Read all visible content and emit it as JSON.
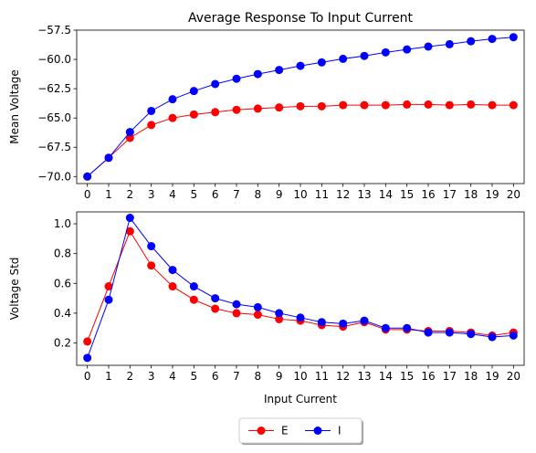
{
  "chart_data": [
    {
      "type": "line",
      "title": "Average Response To Input Current",
      "xlabel": "",
      "ylabel": "Mean Voltage",
      "x": [
        0,
        1,
        2,
        3,
        4,
        5,
        6,
        7,
        8,
        9,
        10,
        11,
        12,
        13,
        14,
        15,
        16,
        17,
        18,
        19,
        20
      ],
      "ylim": [
        -70.6,
        -57.5
      ],
      "yticks": [
        -70.0,
        -67.5,
        -65.0,
        -62.5,
        -60.0,
        -57.5
      ],
      "ytick_labels": [
        "−70.0",
        "−67.5",
        "−65.0",
        "−62.5",
        "−60.0",
        "−57.5"
      ],
      "grid": false,
      "series": [
        {
          "name": "E",
          "color": "#ff0000",
          "values": [
            -70.0,
            -68.4,
            -66.7,
            -65.6,
            -65.0,
            -64.7,
            -64.5,
            -64.3,
            -64.2,
            -64.1,
            -64.0,
            -64.0,
            -63.9,
            -63.9,
            -63.9,
            -63.85,
            -63.85,
            -63.9,
            -63.85,
            -63.9,
            -63.9
          ]
        },
        {
          "name": "I",
          "color": "#0000ff",
          "values": [
            -70.0,
            -68.4,
            -66.2,
            -64.4,
            -63.4,
            -62.7,
            -62.1,
            -61.65,
            -61.25,
            -60.9,
            -60.55,
            -60.25,
            -59.95,
            -59.7,
            -59.4,
            -59.15,
            -58.9,
            -58.7,
            -58.45,
            -58.25,
            -58.1
          ]
        }
      ]
    },
    {
      "type": "line",
      "title": "",
      "xlabel": "Input Current",
      "ylabel": "Voltage Std",
      "x": [
        0,
        1,
        2,
        3,
        4,
        5,
        6,
        7,
        8,
        9,
        10,
        11,
        12,
        13,
        14,
        15,
        16,
        17,
        18,
        19,
        20
      ],
      "ylim": [
        0.05,
        1.08
      ],
      "yticks": [
        0.2,
        0.4,
        0.6,
        0.8,
        1.0
      ],
      "ytick_labels": [
        "0.2",
        "0.4",
        "0.6",
        "0.8",
        "1.0"
      ],
      "grid": false,
      "series": [
        {
          "name": "E",
          "color": "#ff0000",
          "values": [
            0.21,
            0.58,
            0.95,
            0.72,
            0.58,
            0.49,
            0.43,
            0.4,
            0.39,
            0.36,
            0.35,
            0.32,
            0.31,
            0.34,
            0.29,
            0.29,
            0.28,
            0.28,
            0.27,
            0.25,
            0.27
          ]
        },
        {
          "name": "I",
          "color": "#0000ff",
          "values": [
            0.1,
            0.49,
            1.04,
            0.85,
            0.69,
            0.58,
            0.5,
            0.46,
            0.44,
            0.4,
            0.37,
            0.34,
            0.33,
            0.35,
            0.3,
            0.3,
            0.27,
            0.27,
            0.26,
            0.24,
            0.25
          ]
        }
      ]
    }
  ],
  "legend": {
    "placement": "bottom-center",
    "entries": [
      {
        "name": "E",
        "color": "#ff0000"
      },
      {
        "name": "I",
        "color": "#0000ff"
      }
    ]
  }
}
